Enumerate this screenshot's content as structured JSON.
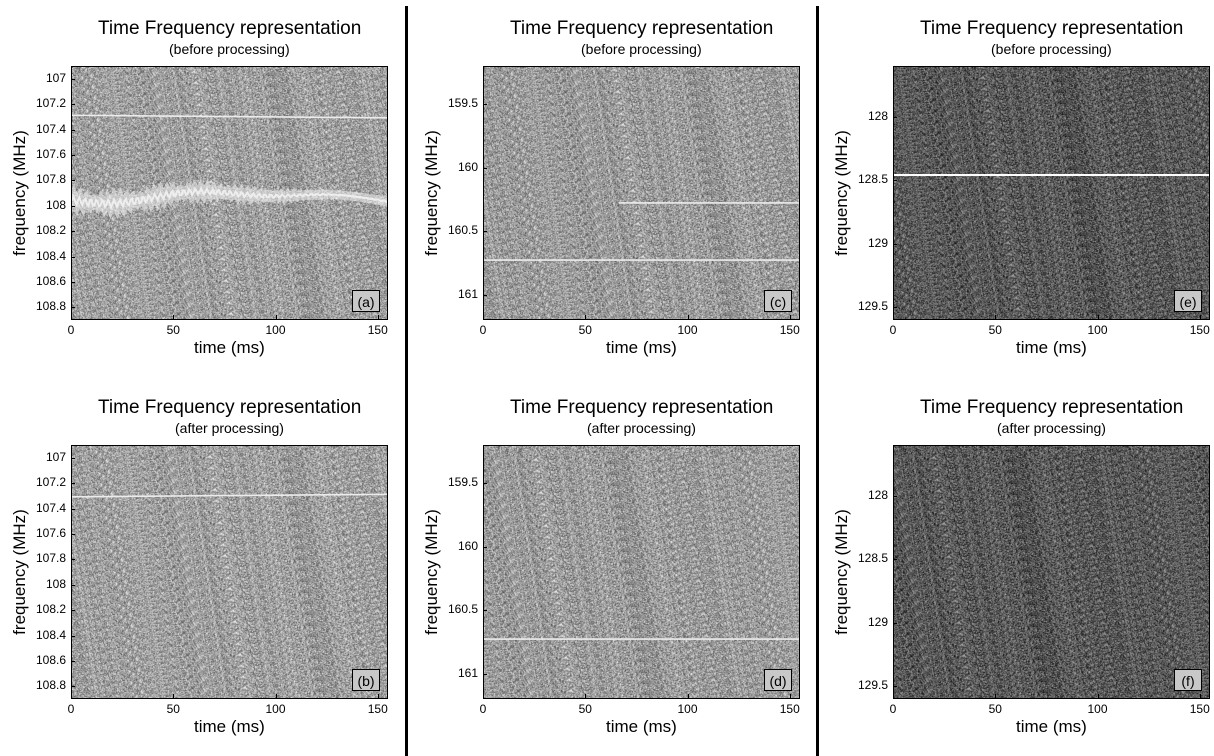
{
  "chart_data": [
    {
      "id": "a",
      "type": "heatmap",
      "title": "Time Frequency representation",
      "subtitle": "(before processing)",
      "xlabel": "time (ms)",
      "ylabel": "frequency (MHz)",
      "panel_label": "(a)",
      "xlim": [
        0,
        155
      ],
      "ylim": [
        108.9,
        106.9
      ],
      "xticks": [
        "0",
        "50",
        "100",
        "150"
      ],
      "yticks": [
        "107",
        "107.2",
        "107.4",
        "107.6",
        "107.8",
        "108",
        "108.2",
        "108.4",
        "108.6",
        "108.8"
      ],
      "background": "#a0a0a0",
      "lines": [
        {
          "y_start": 107.28,
          "y_end": 107.3,
          "x_start": 0,
          "x_end": 155,
          "style": "thin"
        },
        {
          "y_center": 107.92,
          "x_start": 0,
          "x_end": 155,
          "style": "wavy",
          "amplitude": 0.07
        }
      ]
    },
    {
      "id": "b",
      "type": "heatmap",
      "title": "Time Frequency representation",
      "subtitle": "(after processing)",
      "xlabel": "time (ms)",
      "ylabel": "frequency (MHz)",
      "panel_label": "(b)",
      "xlim": [
        0,
        155
      ],
      "ylim": [
        108.9,
        106.9
      ],
      "xticks": [
        "0",
        "50",
        "100",
        "150"
      ],
      "yticks": [
        "107",
        "107.2",
        "107.4",
        "107.6",
        "107.8",
        "108",
        "108.2",
        "108.4",
        "108.6",
        "108.8"
      ],
      "background": "#a0a0a0",
      "lines": [
        {
          "y_start": 107.3,
          "y_end": 107.28,
          "x_start": 0,
          "x_end": 155,
          "style": "thin"
        }
      ]
    },
    {
      "id": "c",
      "type": "heatmap",
      "title": "Time Frequency representation",
      "subtitle": "(before processing)",
      "xlabel": "time (ms)",
      "ylabel": "frequency (MHz)",
      "panel_label": "(c)",
      "xlim": [
        0,
        155
      ],
      "ylim": [
        161.2,
        159.2
      ],
      "xticks": [
        "0",
        "50",
        "100",
        "150"
      ],
      "yticks": [
        "159.5",
        "160",
        "160.5",
        "161"
      ],
      "background": "#9c9c9c",
      "lines": [
        {
          "y_start": 160.27,
          "y_end": 160.27,
          "x_start": 66,
          "x_end": 155,
          "style": "thin"
        },
        {
          "y_start": 160.72,
          "y_end": 160.72,
          "x_start": 0,
          "x_end": 155,
          "style": "thin"
        }
      ]
    },
    {
      "id": "d",
      "type": "heatmap",
      "title": "Time Frequency representation",
      "subtitle": "(after processing)",
      "xlabel": "time (ms)",
      "ylabel": "frequency (MHz)",
      "panel_label": "(d)",
      "xlim": [
        0,
        155
      ],
      "ylim": [
        161.2,
        159.2
      ],
      "xticks": [
        "0",
        "50",
        "100",
        "150"
      ],
      "yticks": [
        "159.5",
        "160",
        "160.5",
        "161"
      ],
      "background": "#9c9c9c",
      "lines": [
        {
          "y_start": 160.72,
          "y_end": 160.72,
          "x_start": 0,
          "x_end": 155,
          "style": "thin"
        }
      ]
    },
    {
      "id": "e",
      "type": "heatmap",
      "title": "Time Frequency representation",
      "subtitle": "(before processing)",
      "xlabel": "time (ms)",
      "ylabel": "frequency (MHz)",
      "panel_label": "(e)",
      "xlim": [
        0,
        155
      ],
      "ylim": [
        129.6,
        127.6
      ],
      "xticks": [
        "0",
        "50",
        "100",
        "150"
      ],
      "yticks": [
        "128",
        "128.5",
        "129",
        "129.5"
      ],
      "background": "#5a5a5a",
      "lines": [
        {
          "y_start": 128.45,
          "y_end": 128.45,
          "x_start": 0,
          "x_end": 155,
          "style": "bright"
        }
      ]
    },
    {
      "id": "f",
      "type": "heatmap",
      "title": "Time Frequency representation",
      "subtitle": "(after processing)",
      "xlabel": "time (ms)",
      "ylabel": "frequency (MHz)",
      "panel_label": "(f)",
      "xlim": [
        0,
        155
      ],
      "ylim": [
        129.6,
        127.6
      ],
      "xticks": [
        "0",
        "50",
        "100",
        "150"
      ],
      "yticks": [
        "128",
        "128.5",
        "129",
        "129.5"
      ],
      "background": "#5a5a5a",
      "lines": []
    }
  ]
}
